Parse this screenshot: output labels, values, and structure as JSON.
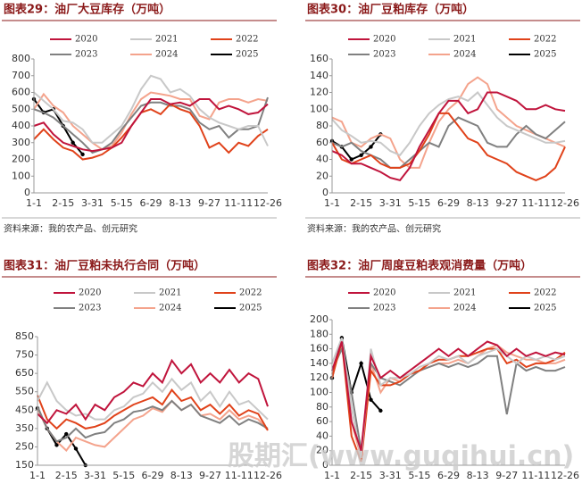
{
  "chart_data": [
    {
      "type": "line",
      "title": "图表29：油厂大豆库存（万吨）",
      "source": "资料来源：我的农产品、创元研究",
      "categories": [
        "1-1",
        null,
        null,
        "2-15",
        null,
        null,
        "3-31",
        null,
        null,
        "5-15",
        null,
        null,
        "6-29",
        null,
        null,
        "8-13",
        null,
        null,
        "9-27",
        null,
        null,
        "11-11",
        null,
        null,
        "12-26"
      ],
      "ylim": [
        0,
        800
      ],
      "yticks": [
        0,
        100,
        200,
        300,
        400,
        500,
        600,
        700,
        800
      ],
      "series": [
        {
          "name": "2020",
          "color": "#c0143c",
          "values": [
            400,
            420,
            350,
            300,
            280,
            260,
            250,
            260,
            270,
            300,
            400,
            480,
            560,
            560,
            530,
            540,
            520,
            560,
            560,
            500,
            520,
            500,
            470,
            480,
            530
          ]
        },
        {
          "name": "2021",
          "color": "#c8c8c8",
          "values": [
            600,
            550,
            500,
            430,
            420,
            380,
            300,
            300,
            350,
            400,
            500,
            620,
            700,
            680,
            600,
            620,
            580,
            500,
            450,
            420,
            400,
            380,
            400,
            400,
            280
          ]
        },
        {
          "name": "2022",
          "color": "#e0421a",
          "values": [
            320,
            380,
            320,
            270,
            250,
            200,
            210,
            230,
            270,
            330,
            400,
            480,
            500,
            470,
            530,
            500,
            480,
            400,
            270,
            300,
            240,
            300,
            280,
            340,
            380
          ]
        },
        {
          "name": "2023",
          "color": "#808080",
          "values": [
            500,
            480,
            450,
            400,
            350,
            300,
            240,
            260,
            300,
            380,
            450,
            520,
            540,
            540,
            520,
            520,
            500,
            420,
            380,
            400,
            330,
            380,
            380,
            400,
            570
          ]
        },
        {
          "name": "2024",
          "color": "#f4a38c",
          "values": [
            500,
            590,
            520,
            480,
            400,
            350,
            300,
            260,
            280,
            360,
            470,
            560,
            600,
            590,
            580,
            560,
            560,
            460,
            440,
            540,
            560,
            560,
            540,
            560,
            550
          ]
        },
        {
          "name": "2025",
          "color": "#000000",
          "values": [
            560,
            480,
            500,
            400,
            300,
            230,
            null,
            null,
            null,
            null,
            null,
            null,
            null,
            null,
            null,
            null,
            null,
            null,
            null,
            null,
            null,
            null,
            null,
            null,
            null
          ]
        }
      ]
    },
    {
      "type": "line",
      "title": "图表30：油厂豆粕库存（万吨）",
      "source": "资料来源：我的农产品、创元研究",
      "categories": [
        "1-1",
        null,
        null,
        "2-15",
        null,
        null,
        "3-31",
        null,
        null,
        "5-15",
        null,
        null,
        "6-29",
        null,
        null,
        "8-13",
        null,
        null,
        "9-27",
        null,
        null,
        "11-11",
        null,
        null,
        "12-26"
      ],
      "ylim": [
        0,
        160
      ],
      "yticks": [
        0,
        20,
        40,
        60,
        80,
        100,
        120,
        140,
        160
      ],
      "series": [
        {
          "name": "2020",
          "color": "#c0143c",
          "values": [
            50,
            45,
            35,
            35,
            30,
            25,
            18,
            15,
            30,
            55,
            75,
            95,
            110,
            110,
            95,
            100,
            120,
            120,
            115,
            110,
            100,
            100,
            105,
            100,
            98
          ]
        },
        {
          "name": "2021",
          "color": "#c8c8c8",
          "values": [
            88,
            75,
            68,
            60,
            62,
            60,
            50,
            45,
            60,
            80,
            95,
            105,
            112,
            115,
            110,
            120,
            105,
            90,
            80,
            75,
            70,
            65,
            60,
            60,
            62
          ]
        },
        {
          "name": "2022",
          "color": "#e0421a",
          "values": [
            60,
            40,
            35,
            40,
            45,
            35,
            30,
            30,
            35,
            50,
            70,
            95,
            95,
            80,
            65,
            60,
            45,
            40,
            35,
            25,
            20,
            15,
            20,
            30,
            55
          ]
        },
        {
          "name": "2023",
          "color": "#808080",
          "values": [
            60,
            55,
            60,
            50,
            45,
            40,
            30,
            30,
            40,
            50,
            60,
            55,
            80,
            90,
            85,
            80,
            60,
            55,
            55,
            70,
            80,
            70,
            65,
            75,
            85
          ]
        },
        {
          "name": "2024",
          "color": "#f4a38c",
          "values": [
            90,
            85,
            60,
            55,
            65,
            70,
            65,
            40,
            30,
            30,
            60,
            85,
            100,
            110,
            130,
            138,
            130,
            100,
            90,
            80,
            75,
            70,
            65,
            60,
            55
          ]
        },
        {
          "name": "2025",
          "color": "#000000",
          "values": [
            62,
            55,
            40,
            45,
            55,
            70,
            null,
            null,
            null,
            null,
            null,
            null,
            null,
            null,
            null,
            null,
            null,
            null,
            null,
            null,
            null,
            null,
            null,
            null,
            null
          ]
        }
      ]
    },
    {
      "type": "line",
      "title": "图表31：油厂豆粕未执行合同（万吨）",
      "categories": [
        "1-1",
        null,
        null,
        "2-15",
        null,
        null,
        "3-31",
        null,
        null,
        "5-15",
        null,
        null,
        "6-29",
        null,
        null,
        "8-13",
        null,
        null,
        "9-27",
        null,
        null,
        "11-11",
        null,
        null,
        "12-26"
      ],
      "ylim": [
        150,
        850
      ],
      "yticks": [
        150,
        250,
        350,
        450,
        550,
        650,
        750,
        850
      ],
      "series": [
        {
          "name": "2020",
          "color": "#c0143c",
          "values": [
            430,
            380,
            450,
            430,
            480,
            400,
            480,
            450,
            520,
            550,
            600,
            580,
            650,
            600,
            720,
            650,
            700,
            600,
            650,
            600,
            670,
            600,
            650,
            620,
            470
          ]
        },
        {
          "name": "2021",
          "color": "#c8c8c8",
          "values": [
            500,
            600,
            500,
            450,
            420,
            430,
            400,
            400,
            450,
            470,
            520,
            540,
            600,
            550,
            620,
            560,
            600,
            500,
            550,
            470,
            550,
            480,
            500,
            450,
            400
          ]
        },
        {
          "name": "2022",
          "color": "#e0421a",
          "values": [
            530,
            400,
            350,
            400,
            380,
            350,
            360,
            380,
            420,
            450,
            480,
            500,
            520,
            480,
            560,
            500,
            520,
            450,
            480,
            430,
            480,
            420,
            450,
            430,
            340
          ]
        },
        {
          "name": "2023",
          "color": "#808080",
          "values": [
            470,
            350,
            280,
            300,
            350,
            300,
            320,
            330,
            380,
            400,
            440,
            450,
            470,
            450,
            500,
            450,
            480,
            420,
            400,
            380,
            420,
            370,
            400,
            380,
            350
          ]
        },
        {
          "name": "2024",
          "color": "#f4a38c",
          "values": [
            460,
            350,
            280,
            230,
            300,
            280,
            260,
            250,
            300,
            350,
            400,
            420,
            460,
            440,
            500,
            450,
            480,
            420,
            430,
            400,
            450,
            400,
            420,
            400,
            340
          ]
        },
        {
          "name": "2025",
          "color": "#000000",
          "values": [
            460,
            350,
            260,
            320,
            240,
            150,
            null,
            null,
            null,
            null,
            null,
            null,
            null,
            null,
            null,
            null,
            null,
            null,
            null,
            null,
            null,
            null,
            null,
            null,
            null
          ]
        }
      ]
    },
    {
      "type": "line",
      "title": "图表32：油厂周度豆粕表观消费量（万吨）",
      "categories": [
        "1-1",
        null,
        null,
        "2-15",
        null,
        null,
        "3-31",
        null,
        null,
        "5-15",
        null,
        null,
        "6-29",
        null,
        null,
        "8-13",
        null,
        null,
        "9-27",
        null,
        null,
        "11-11",
        null,
        null,
        "12-26"
      ],
      "ylim": [
        0,
        200
      ],
      "yticks": [
        0,
        20,
        40,
        60,
        80,
        100,
        120,
        140,
        160,
        180,
        200
      ],
      "series": [
        {
          "name": "2020",
          "color": "#c0143c",
          "values": [
            130,
            170,
            60,
            20,
            150,
            120,
            130,
            120,
            130,
            140,
            150,
            160,
            150,
            160,
            150,
            160,
            170,
            165,
            150,
            160,
            150,
            155,
            150,
            155,
            152
          ]
        },
        {
          "name": "2021",
          "color": "#c8c8c8",
          "values": [
            140,
            175,
            80,
            10,
            160,
            110,
            120,
            120,
            125,
            135,
            140,
            150,
            145,
            150,
            140,
            150,
            155,
            160,
            150,
            140,
            150,
            145,
            150,
            145,
            150
          ]
        },
        {
          "name": "2022",
          "color": "#e0421a",
          "values": [
            120,
            170,
            40,
            5,
            130,
            110,
            110,
            115,
            125,
            130,
            140,
            145,
            145,
            150,
            150,
            155,
            160,
            160,
            140,
            145,
            135,
            140,
            140,
            145,
            155
          ]
        },
        {
          "name": "2023",
          "color": "#808080",
          "values": [
            130,
            160,
            100,
            20,
            140,
            120,
            115,
            110,
            120,
            130,
            135,
            140,
            135,
            140,
            135,
            140,
            150,
            150,
            70,
            140,
            130,
            135,
            130,
            130,
            135
          ]
        },
        {
          "name": "2024",
          "color": "#f4a38c",
          "values": [
            125,
            170,
            60,
            10,
            140,
            100,
            120,
            115,
            125,
            130,
            135,
            140,
            140,
            145,
            140,
            150,
            160,
            165,
            155,
            150,
            145,
            145,
            140,
            140,
            145
          ]
        },
        {
          "name": "2025",
          "color": "#000000",
          "values": [
            120,
            175,
            100,
            140,
            90,
            75,
            null,
            null,
            null,
            null,
            null,
            null,
            null,
            null,
            null,
            null,
            null,
            null,
            null,
            null,
            null,
            null,
            null,
            null,
            null
          ]
        }
      ]
    }
  ],
  "watermark": "股期汇(www.guqihui.cn)"
}
